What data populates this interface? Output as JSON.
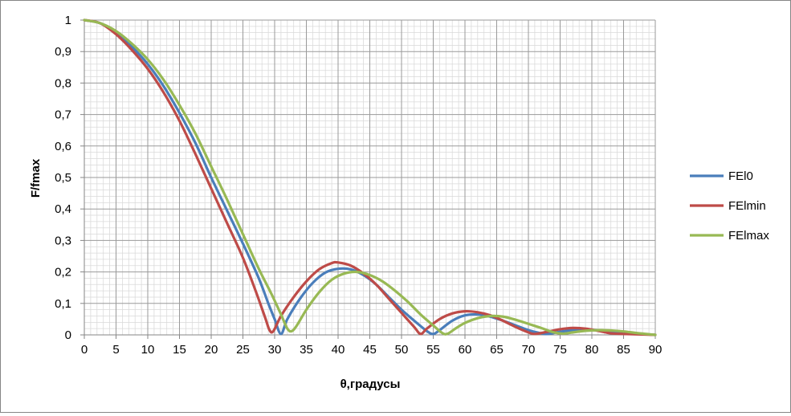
{
  "chart_data": {
    "type": "line",
    "xlabel": "θ,градусы",
    "ylabel": "F/fmax",
    "xlim": [
      0,
      90
    ],
    "ylim": [
      0,
      1
    ],
    "x_ticks": [
      "0",
      "5",
      "10",
      "15",
      "20",
      "25",
      "30",
      "35",
      "40",
      "45",
      "50",
      "55",
      "60",
      "65",
      "70",
      "75",
      "80",
      "85",
      "90"
    ],
    "y_ticks": [
      "0",
      "0,1",
      "0,2",
      "0,3",
      "0,4",
      "0,5",
      "0,6",
      "0,7",
      "0,8",
      "0,9",
      "1"
    ],
    "grid": true,
    "legend_position": "right",
    "series": [
      {
        "name": "FEl0",
        "color": "#4a7ebb",
        "points": [
          [
            0,
            1
          ],
          [
            2.5,
            0.99
          ],
          [
            5,
            0.96
          ],
          [
            7.5,
            0.915
          ],
          [
            10,
            0.86
          ],
          [
            12.5,
            0.79
          ],
          [
            15,
            0.705
          ],
          [
            17.5,
            0.61
          ],
          [
            20,
            0.5
          ],
          [
            22.5,
            0.395
          ],
          [
            25,
            0.29
          ],
          [
            27.5,
            0.18
          ],
          [
            29,
            0.1
          ],
          [
            30,
            0.05
          ],
          [
            31,
            0.003
          ],
          [
            32,
            0.05
          ],
          [
            34,
            0.115
          ],
          [
            36,
            0.165
          ],
          [
            38,
            0.198
          ],
          [
            40,
            0.21
          ],
          [
            42,
            0.208
          ],
          [
            44,
            0.19
          ],
          [
            46,
            0.16
          ],
          [
            48,
            0.12
          ],
          [
            50,
            0.08
          ],
          [
            52,
            0.045
          ],
          [
            54,
            0.012
          ],
          [
            55,
            0.003
          ],
          [
            56,
            0.015
          ],
          [
            58,
            0.045
          ],
          [
            60,
            0.062
          ],
          [
            62,
            0.065
          ],
          [
            64,
            0.058
          ],
          [
            66,
            0.045
          ],
          [
            68,
            0.03
          ],
          [
            70,
            0.015
          ],
          [
            72,
            0.005
          ],
          [
            73,
            0.003
          ],
          [
            75,
            0.01
          ],
          [
            77,
            0.015
          ],
          [
            79,
            0.016
          ],
          [
            81,
            0.015
          ],
          [
            83,
            0.012
          ],
          [
            86,
            0.007
          ],
          [
            88,
            0.003
          ],
          [
            90,
            0
          ]
        ]
      },
      {
        "name": "FElmin",
        "color": "#be4b48",
        "points": [
          [
            0,
            1
          ],
          [
            2.5,
            0.99
          ],
          [
            5,
            0.955
          ],
          [
            7.5,
            0.905
          ],
          [
            10,
            0.845
          ],
          [
            12.5,
            0.77
          ],
          [
            15,
            0.68
          ],
          [
            17.5,
            0.575
          ],
          [
            20,
            0.465
          ],
          [
            22.5,
            0.355
          ],
          [
            25,
            0.245
          ],
          [
            27,
            0.14
          ],
          [
            28.5,
            0.055
          ],
          [
            29.2,
            0.015
          ],
          [
            29.8,
            0.012
          ],
          [
            31,
            0.06
          ],
          [
            33,
            0.12
          ],
          [
            35,
            0.17
          ],
          [
            37,
            0.208
          ],
          [
            39,
            0.228
          ],
          [
            40,
            0.23
          ],
          [
            42,
            0.22
          ],
          [
            44,
            0.195
          ],
          [
            46,
            0.16
          ],
          [
            48,
            0.115
          ],
          [
            50,
            0.07
          ],
          [
            52,
            0.025
          ],
          [
            53,
            0.003
          ],
          [
            54,
            0.02
          ],
          [
            56,
            0.05
          ],
          [
            58,
            0.068
          ],
          [
            60,
            0.075
          ],
          [
            62,
            0.072
          ],
          [
            64,
            0.062
          ],
          [
            66,
            0.045
          ],
          [
            68,
            0.025
          ],
          [
            70,
            0.008
          ],
          [
            71,
            0.003
          ],
          [
            73,
            0.01
          ],
          [
            75,
            0.018
          ],
          [
            77,
            0.022
          ],
          [
            79,
            0.02
          ],
          [
            81,
            0.013
          ],
          [
            83,
            0.005
          ],
          [
            85,
            0.003
          ],
          [
            87,
            0.002
          ],
          [
            90,
            0
          ]
        ]
      },
      {
        "name": "FElmax",
        "color": "#98b954",
        "points": [
          [
            0,
            1
          ],
          [
            2.5,
            0.99
          ],
          [
            5,
            0.965
          ],
          [
            7.5,
            0.925
          ],
          [
            10,
            0.875
          ],
          [
            12.5,
            0.81
          ],
          [
            15,
            0.73
          ],
          [
            17.5,
            0.64
          ],
          [
            20,
            0.535
          ],
          [
            22.5,
            0.43
          ],
          [
            25,
            0.32
          ],
          [
            27.5,
            0.21
          ],
          [
            29.5,
            0.13
          ],
          [
            31,
            0.065
          ],
          [
            32,
            0.02
          ],
          [
            32.7,
            0.012
          ],
          [
            33.5,
            0.03
          ],
          [
            35,
            0.08
          ],
          [
            37,
            0.135
          ],
          [
            39,
            0.175
          ],
          [
            41,
            0.195
          ],
          [
            43,
            0.2
          ],
          [
            45,
            0.19
          ],
          [
            47,
            0.17
          ],
          [
            49,
            0.14
          ],
          [
            51,
            0.105
          ],
          [
            53,
            0.065
          ],
          [
            55,
            0.03
          ],
          [
            56.5,
            0.005
          ],
          [
            57.3,
            0.004
          ],
          [
            58.5,
            0.02
          ],
          [
            60,
            0.038
          ],
          [
            62,
            0.053
          ],
          [
            64,
            0.06
          ],
          [
            66,
            0.058
          ],
          [
            68,
            0.048
          ],
          [
            70,
            0.035
          ],
          [
            72,
            0.022
          ],
          [
            74,
            0.008
          ],
          [
            75.5,
            0.004
          ],
          [
            77,
            0.008
          ],
          [
            79,
            0.013
          ],
          [
            81,
            0.015
          ],
          [
            83,
            0.014
          ],
          [
            85,
            0.011
          ],
          [
            87,
            0.006
          ],
          [
            89,
            0.002
          ],
          [
            90,
            0
          ]
        ]
      }
    ]
  }
}
